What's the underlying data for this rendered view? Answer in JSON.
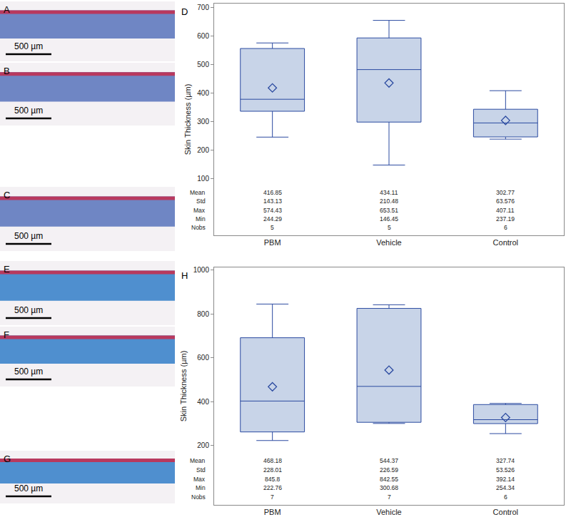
{
  "panels": [
    {
      "label": "A",
      "scale_bar": "500 µm"
    },
    {
      "label": "B",
      "scale_bar": "500 µm"
    },
    {
      "label": "C",
      "scale_bar": "500 µm"
    },
    {
      "label": "E",
      "scale_bar": "500 µm"
    },
    {
      "label": "F",
      "scale_bar": "500 µm"
    },
    {
      "label": "G",
      "scale_bar": "500 µm"
    }
  ],
  "chart_data": [
    {
      "type": "box",
      "title": "D",
      "y_label": "Skin Thickness (µm)",
      "categories": [
        "PBM",
        "Vehicle",
        "Control"
      ],
      "q1": [
        335,
        297,
        245
      ],
      "median": [
        377,
        481,
        294
      ],
      "q3": [
        555,
        592,
        342
      ],
      "table": [
        {
          "label": "Mean",
          "values": [
            416.85,
            434.11,
            302.77
          ]
        },
        {
          "label": "Std",
          "values": [
            143.13,
            210.48,
            63.576
          ]
        },
        {
          "label": "Max",
          "values": [
            574.43,
            653.51,
            407.11
          ]
        },
        {
          "label": "Min",
          "values": [
            244.29,
            146.45,
            237.19
          ]
        },
        {
          "label": "Nobs",
          "values": [
            5,
            5,
            6
          ]
        }
      ],
      "color": "#2b4aa0",
      "marker": "diamond-open",
      "grid": false,
      "ylim": [
        -100,
        712.5
      ],
      "yticks": [
        100,
        200,
        300,
        400,
        500,
        600,
        700
      ]
    },
    {
      "type": "box",
      "title": "H",
      "y_label": "Skin Thickness (µm)",
      "categories": [
        "PBM",
        "Vehicle",
        "Control"
      ],
      "q1": [
        262,
        306,
        300
      ],
      "median": [
        403,
        470,
        318
      ],
      "q3": [
        692,
        826,
        387
      ],
      "table": [
        {
          "label": "Mean",
          "values": [
            468.18,
            544.37,
            327.74
          ]
        },
        {
          "label": "Std",
          "values": [
            228.01,
            226.59,
            53.526
          ]
        },
        {
          "label": "Max",
          "values": [
            845.8,
            842.55,
            392.14
          ]
        },
        {
          "label": "Min",
          "values": [
            222.76,
            300.68,
            254.34
          ]
        },
        {
          "label": "Nobs",
          "values": [
            7,
            7,
            6
          ]
        }
      ],
      "color": "#2b4aa0",
      "marker": "diamond-open",
      "grid": false,
      "ylim": [
        -71,
        1013
      ],
      "yticks": [
        200,
        400,
        600,
        800,
        1000
      ]
    }
  ]
}
